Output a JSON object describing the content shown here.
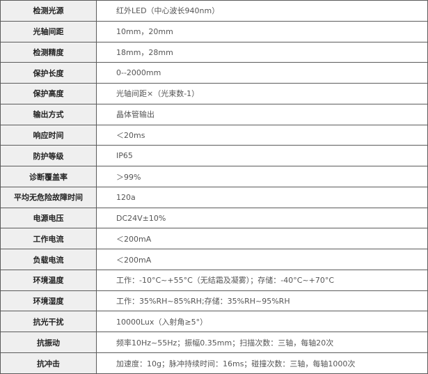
{
  "specs": [
    {
      "label": "检测光源",
      "value": "红外LED（中心波长940nm）"
    },
    {
      "label": "光轴间距",
      "value": "10mm，20mm"
    },
    {
      "label": "检测精度",
      "value": "18mm，28mm"
    },
    {
      "label": "保护长度",
      "value": "0--2000mm"
    },
    {
      "label": "保护高度",
      "value": "光轴间距×（光束数-1）"
    },
    {
      "label": "输出方式",
      "value": "晶体管输出"
    },
    {
      "label": "响应时间",
      "value": "＜20ms"
    },
    {
      "label": "防护等级",
      "value": "IP65"
    },
    {
      "label": "诊断覆盖率",
      "value": "＞99%"
    },
    {
      "label": "平均无危险故障时间",
      "value": "120a"
    },
    {
      "label": "电源电压",
      "value": "DC24V±10%"
    },
    {
      "label": "工作电流",
      "value": "＜200mA"
    },
    {
      "label": "负载电流",
      "value": "＜200mA"
    },
    {
      "label": "环境温度",
      "value": "工作：-10°C~+55°C（无结霜及凝雾）；存储：-40°C~+70°C"
    },
    {
      "label": "环境湿度",
      "value": "工作：35%RH~85%RH;存储：35%RH~95%RH"
    },
    {
      "label": "抗光干扰",
      "value": "10000Lux（入射角≥5°）"
    },
    {
      "label": "抗振动",
      "value": "频率10Hz~55Hz；振幅0.35mm；扫描次数：三轴，每轴20次"
    },
    {
      "label": "抗冲击",
      "value": "加速度：10g；脉冲持续时间：16ms；碰撞次数：三轴，每轴1000次"
    }
  ]
}
